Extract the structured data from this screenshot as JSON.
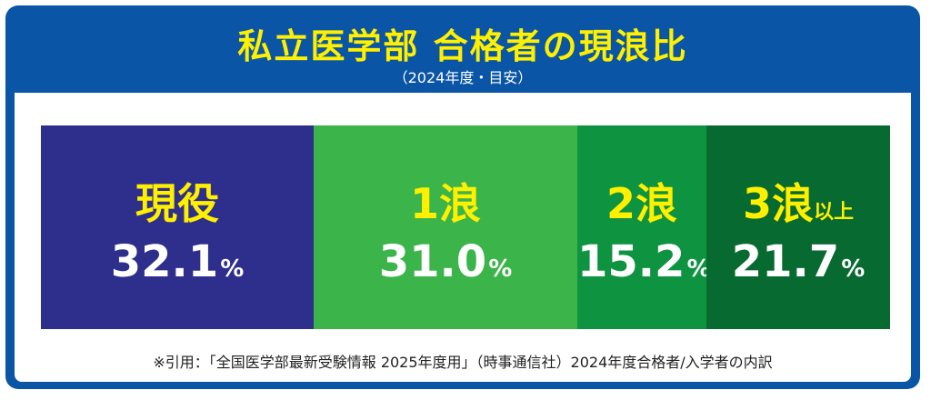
{
  "header": {
    "title": "私立医学部 合格者の現浪比",
    "subtitle": "（2024年度・目安）"
  },
  "chart_data": {
    "type": "bar",
    "orientation": "horizontal-stacked-100",
    "title": "私立医学部 合格者の現浪比",
    "subtitle": "（2024年度・目安）",
    "unit": "%",
    "categories": [
      "現役",
      "1浪",
      "2浪",
      "3浪以上"
    ],
    "values": [
      32.1,
      31.0,
      15.2,
      21.7
    ],
    "colors": [
      "#2e2f8c",
      "#3bb44a",
      "#0e9441",
      "#076a31"
    ],
    "label_color": "#fff000",
    "value_color": "#ffffff",
    "grid": false,
    "legend": "none"
  },
  "segments": [
    {
      "label": "現役",
      "label_suffix": "",
      "value_text": "32.1",
      "pct": "%"
    },
    {
      "label": "1浪",
      "label_suffix": "",
      "value_text": "31.0",
      "pct": "%"
    },
    {
      "label": "2浪",
      "label_suffix": "",
      "value_text": "15.2",
      "pct": "%"
    },
    {
      "label": "3浪",
      "label_suffix": "以上",
      "value_text": "21.7",
      "pct": "%"
    }
  ],
  "footer": {
    "note": "※引用：「全国医学部最新受験情報 2025年度用」（時事通信社）2024年度合格者/入学者の内訳"
  }
}
